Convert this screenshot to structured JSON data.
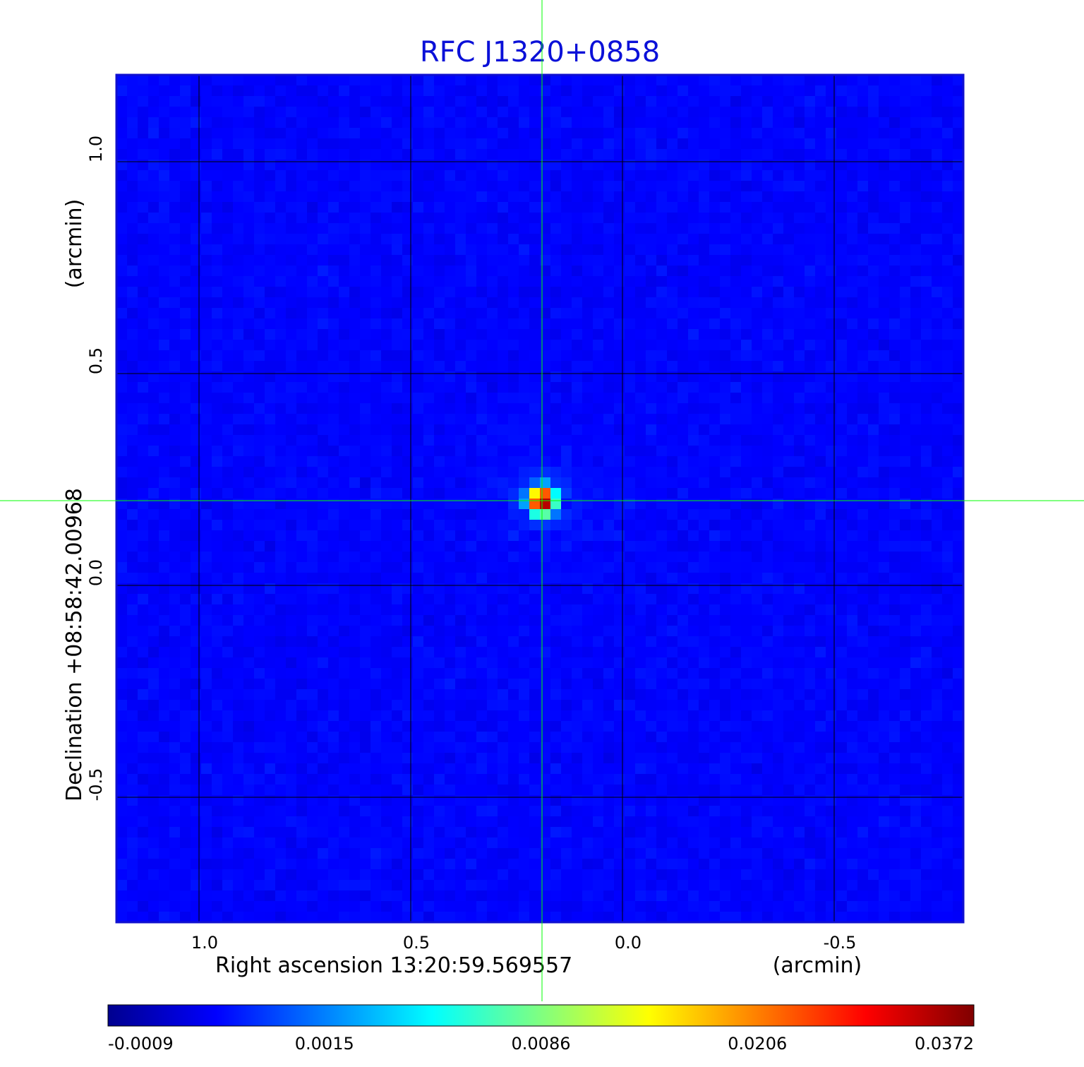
{
  "chart_data": {
    "type": "heatmap",
    "title": "RFC J1320+0858",
    "xlabel": "Right ascension  13:20:59.569557",
    "xunit": "(arcmin)",
    "ylabel": "Declination  +08:58:42.00968",
    "yunit": "(arcmin)",
    "xlim": [
      1.195,
      -0.805
    ],
    "ylim": [
      -0.795,
      1.205
    ],
    "x_ticks": [
      1.0,
      0.5,
      0.0,
      -0.5
    ],
    "x_tick_labels": [
      "1.0",
      "0.5",
      "0.0",
      "-0.5"
    ],
    "y_ticks": [
      -0.5,
      0.0,
      0.5,
      1.0
    ],
    "y_tick_labels": [
      "-0.5",
      "0.0",
      "0.5",
      "1.0"
    ],
    "grid": true,
    "colormap": "jet",
    "colorbar": {
      "ticks": [
        -0.0009,
        0.0015,
        0.0086,
        0.0206,
        0.0372
      ],
      "tick_labels": [
        "-0.0009",
        "0.0015",
        "0.0086",
        "0.0206",
        "0.0372"
      ],
      "range": [
        -0.0009,
        0.0372
      ]
    },
    "source": {
      "x": 0.19,
      "y": 0.2,
      "peak": 0.0372
    },
    "crosshair": {
      "x": 0.19,
      "y": 0.2,
      "color": "#00ff00"
    },
    "pixels_per_axis": 80
  }
}
